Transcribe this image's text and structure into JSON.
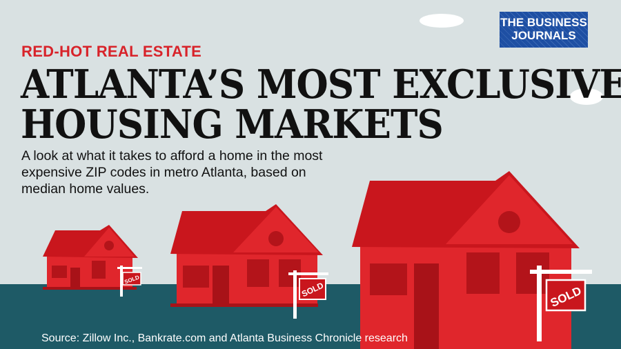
{
  "kicker": "RED-HOT REAL ESTATE",
  "title": [
    "ATLANTA’S MOST EXCLUSIVE",
    "HOUSING MARKETS"
  ],
  "subtitle": "A look at what it takes to afford a home in the most expensive ZIP codes in metro Atlanta, based on median home values.",
  "source": "Source: Zillow Inc., Bankrate.com and Atlanta Business Chronicle research",
  "logo": {
    "line1": "THE BUSINESS",
    "line2": "JOURNALS"
  },
  "sign_label": "SOLD",
  "colors": {
    "accent_red": "#d8232a",
    "ground_teal": "#1e5a66",
    "sky": "#d9e1e2",
    "logo_blue": "#1e4fa3"
  }
}
